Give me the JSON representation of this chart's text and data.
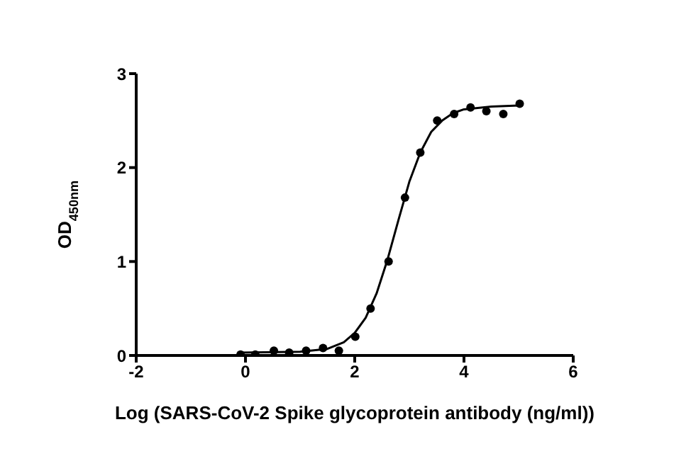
{
  "chart_data": {
    "type": "scatter",
    "xlabel": "Log (SARS-CoV-2 Spike glycoprotein antibody (ng/ml))",
    "ylabel": "OD$_{450nm}$",
    "xlim": [
      -2,
      6
    ],
    "xticks": [
      -2,
      0,
      2,
      4,
      6
    ],
    "ylim": [
      0,
      3
    ],
    "yticks": [
      0,
      1,
      2,
      3
    ],
    "grid": false,
    "marker": "circle",
    "series": [
      {
        "type": "scatter",
        "color": "#000000",
        "x": [
          -0.09,
          0.18,
          0.52,
          0.8,
          1.11,
          1.42,
          1.71,
          2.01,
          2.29,
          2.62,
          2.92,
          3.2,
          3.51,
          3.82,
          4.12,
          4.41,
          4.72,
          5.02
        ],
        "values": [
          0.01,
          0.01,
          0.05,
          0.03,
          0.05,
          0.08,
          0.05,
          0.2,
          0.5,
          1.0,
          1.68,
          2.16,
          2.5,
          2.57,
          2.64,
          2.6,
          2.57,
          2.68
        ]
      },
      {
        "type": "line",
        "color": "#000000",
        "line_style": "solid",
        "marker": "none",
        "x": [
          -0.1,
          1.0,
          1.5,
          1.8,
          2.0,
          2.2,
          2.4,
          2.6,
          2.8,
          3.0,
          3.2,
          3.4,
          3.6,
          3.8,
          4.0,
          4.5,
          5.0
        ],
        "values": [
          0.03,
          0.04,
          0.07,
          0.14,
          0.24,
          0.4,
          0.66,
          1.02,
          1.44,
          1.85,
          2.16,
          2.38,
          2.5,
          2.58,
          2.62,
          2.65,
          2.66
        ]
      }
    ]
  }
}
